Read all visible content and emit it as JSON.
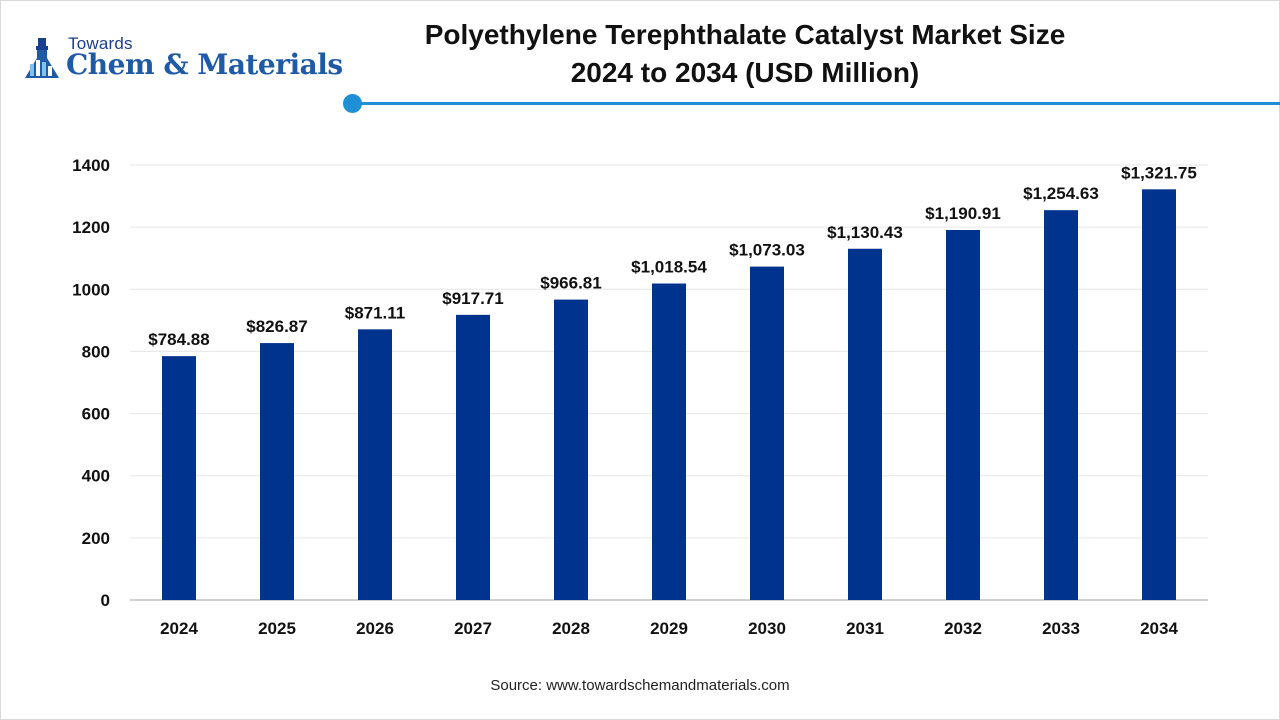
{
  "brand": {
    "top_text": "Towards",
    "main_text": "Chem & Materials"
  },
  "source_text": "Source: www.towardschemandmaterials.com",
  "colors": {
    "bar": "#00338d",
    "accent": "#1f8fd6",
    "brand": "#1f5aa6"
  },
  "chart_data": {
    "type": "bar",
    "title": "Polyethylene Terephthalate Catalyst Market Size",
    "subtitle": "2024 to 2034 (USD Million)",
    "categories": [
      "2024",
      "2025",
      "2026",
      "2027",
      "2028",
      "2029",
      "2030",
      "2031",
      "2032",
      "2033",
      "2034"
    ],
    "values": [
      784.88,
      826.87,
      871.11,
      917.71,
      966.81,
      1018.54,
      1073.03,
      1130.43,
      1190.91,
      1254.63,
      1321.75
    ],
    "data_labels": [
      "$784.88",
      "$826.87",
      "$871.11",
      "$917.71",
      "$966.81",
      "$1,018.54",
      "$1,073.03",
      "$1,130.43",
      "$1,190.91",
      "$1,254.63",
      "$1,321.75"
    ],
    "y_ticks": [
      0,
      200,
      400,
      600,
      800,
      1000,
      1200,
      1400
    ],
    "ylim": [
      0,
      1400
    ],
    "grid": true,
    "legend": "none"
  }
}
